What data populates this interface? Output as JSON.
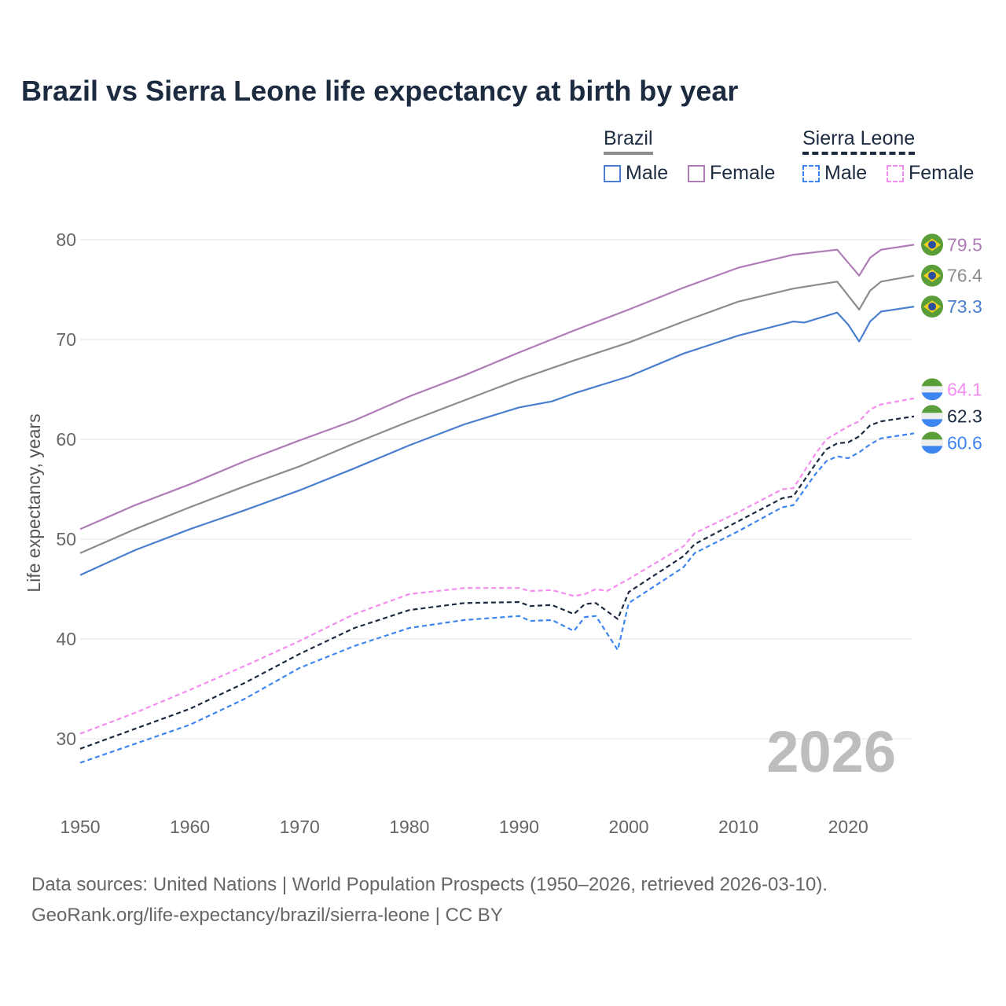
{
  "chart_data": {
    "type": "line",
    "title": "Brazil vs Sierra Leone life expectancy at birth by year",
    "xlabel": "",
    "ylabel": "Life expectancy, years",
    "xlim": [
      1950,
      2026
    ],
    "ylim": [
      25,
      83
    ],
    "xticks": [
      1950,
      1960,
      1970,
      1980,
      1990,
      2000,
      2010,
      2020
    ],
    "yticks": [
      30,
      40,
      50,
      60,
      70,
      80
    ],
    "grid": true,
    "watermark_year": "2026",
    "legend": {
      "placement": "top-right",
      "groups": [
        {
          "country": "Brazil",
          "style": "solid",
          "items": [
            "Male",
            "Female"
          ]
        },
        {
          "country": "Sierra Leone",
          "style": "dashed",
          "items": [
            "Male",
            "Female"
          ]
        }
      ]
    },
    "series": [
      {
        "name": "Brazil Female",
        "country": "Brazil",
        "color": "#b07cb8",
        "dashed": false,
        "end_label": "79.5",
        "points": [
          [
            1950,
            51.0
          ],
          [
            1955,
            53.4
          ],
          [
            1960,
            55.5
          ],
          [
            1965,
            57.8
          ],
          [
            1970,
            59.9
          ],
          [
            1975,
            61.9
          ],
          [
            1980,
            64.3
          ],
          [
            1985,
            66.4
          ],
          [
            1990,
            68.7
          ],
          [
            1995,
            70.9
          ],
          [
            2000,
            73.0
          ],
          [
            2005,
            75.2
          ],
          [
            2010,
            77.2
          ],
          [
            2015,
            78.5
          ],
          [
            2019,
            79.0
          ],
          [
            2021,
            76.4
          ],
          [
            2022,
            78.2
          ],
          [
            2023,
            79.0
          ],
          [
            2026,
            79.5
          ]
        ]
      },
      {
        "name": "Brazil Total",
        "country": "Brazil",
        "color": "#8c8c8c",
        "dashed": false,
        "end_label": "76.4",
        "points": [
          [
            1950,
            48.6
          ],
          [
            1955,
            51.0
          ],
          [
            1960,
            53.2
          ],
          [
            1965,
            55.3
          ],
          [
            1970,
            57.3
          ],
          [
            1975,
            59.6
          ],
          [
            1980,
            61.8
          ],
          [
            1985,
            63.9
          ],
          [
            1990,
            66.0
          ],
          [
            1995,
            67.9
          ],
          [
            2000,
            69.7
          ],
          [
            2005,
            71.8
          ],
          [
            2010,
            73.8
          ],
          [
            2015,
            75.1
          ],
          [
            2019,
            75.8
          ],
          [
            2021,
            73.0
          ],
          [
            2022,
            74.9
          ],
          [
            2023,
            75.8
          ],
          [
            2026,
            76.4
          ]
        ]
      },
      {
        "name": "Brazil Male",
        "country": "Brazil",
        "color": "#4a7ecf",
        "dashed": false,
        "end_label": "73.3",
        "points": [
          [
            1950,
            46.4
          ],
          [
            1955,
            48.9
          ],
          [
            1960,
            51.0
          ],
          [
            1965,
            52.9
          ],
          [
            1970,
            54.9
          ],
          [
            1975,
            57.1
          ],
          [
            1980,
            59.4
          ],
          [
            1985,
            61.5
          ],
          [
            1990,
            63.2
          ],
          [
            1993,
            63.8
          ],
          [
            1995,
            64.6
          ],
          [
            2000,
            66.3
          ],
          [
            2005,
            68.6
          ],
          [
            2010,
            70.4
          ],
          [
            2015,
            71.8
          ],
          [
            2016,
            71.7
          ],
          [
            2019,
            72.7
          ],
          [
            2020,
            71.5
          ],
          [
            2021,
            69.8
          ],
          [
            2022,
            71.8
          ],
          [
            2023,
            72.8
          ],
          [
            2026,
            73.3
          ]
        ]
      },
      {
        "name": "Sierra Leone Female",
        "country": "Sierra Leone",
        "color": "#f58cf0",
        "dashed": true,
        "end_label": "64.1",
        "points": [
          [
            1950,
            30.5
          ],
          [
            1955,
            32.6
          ],
          [
            1960,
            34.9
          ],
          [
            1965,
            37.3
          ],
          [
            1970,
            39.8
          ],
          [
            1975,
            42.5
          ],
          [
            1980,
            44.5
          ],
          [
            1985,
            45.1
          ],
          [
            1990,
            45.1
          ],
          [
            1991,
            44.8
          ],
          [
            1993,
            44.9
          ],
          [
            1995,
            44.3
          ],
          [
            1996,
            44.5
          ],
          [
            1997,
            45.0
          ],
          [
            1998,
            44.8
          ],
          [
            1999,
            45.4
          ],
          [
            2000,
            46.0
          ],
          [
            2005,
            49.3
          ],
          [
            2006,
            50.6
          ],
          [
            2010,
            52.7
          ],
          [
            2014,
            55.0
          ],
          [
            2015,
            55.1
          ],
          [
            2017,
            58.5
          ],
          [
            2018,
            60.0
          ],
          [
            2020,
            61.3
          ],
          [
            2021,
            61.8
          ],
          [
            2022,
            63.0
          ],
          [
            2023,
            63.5
          ],
          [
            2026,
            64.1
          ]
        ]
      },
      {
        "name": "Sierra Leone Total",
        "country": "Sierra Leone",
        "color": "#1c2b40",
        "dashed": true,
        "end_label": "62.3",
        "points": [
          [
            1950,
            29.0
          ],
          [
            1955,
            31.0
          ],
          [
            1960,
            33.0
          ],
          [
            1965,
            35.6
          ],
          [
            1970,
            38.5
          ],
          [
            1975,
            41.1
          ],
          [
            1980,
            42.9
          ],
          [
            1985,
            43.6
          ],
          [
            1990,
            43.7
          ],
          [
            1991,
            43.3
          ],
          [
            1993,
            43.4
          ],
          [
            1995,
            42.5
          ],
          [
            1996,
            43.5
          ],
          [
            1997,
            43.6
          ],
          [
            1999,
            42.0
          ],
          [
            2000,
            44.7
          ],
          [
            2005,
            48.3
          ],
          [
            2006,
            49.5
          ],
          [
            2010,
            51.8
          ],
          [
            2014,
            54.1
          ],
          [
            2015,
            54.3
          ],
          [
            2017,
            57.5
          ],
          [
            2018,
            59.0
          ],
          [
            2019,
            59.6
          ],
          [
            2020,
            59.7
          ],
          [
            2021,
            60.3
          ],
          [
            2022,
            61.4
          ],
          [
            2023,
            61.8
          ],
          [
            2026,
            62.3
          ]
        ]
      },
      {
        "name": "Sierra Leone Male",
        "country": "Sierra Leone",
        "color": "#3d85f0",
        "dashed": true,
        "end_label": "60.6",
        "points": [
          [
            1950,
            27.6
          ],
          [
            1955,
            29.5
          ],
          [
            1960,
            31.4
          ],
          [
            1965,
            34.0
          ],
          [
            1970,
            37.1
          ],
          [
            1975,
            39.3
          ],
          [
            1980,
            41.1
          ],
          [
            1985,
            41.9
          ],
          [
            1990,
            42.3
          ],
          [
            1991,
            41.8
          ],
          [
            1993,
            41.9
          ],
          [
            1995,
            40.8
          ],
          [
            1996,
            42.2
          ],
          [
            1997,
            42.3
          ],
          [
            1999,
            38.9
          ],
          [
            2000,
            43.6
          ],
          [
            2005,
            47.2
          ],
          [
            2006,
            48.6
          ],
          [
            2010,
            50.8
          ],
          [
            2014,
            53.2
          ],
          [
            2015,
            53.4
          ],
          [
            2017,
            56.5
          ],
          [
            2018,
            57.8
          ],
          [
            2019,
            58.3
          ],
          [
            2020,
            58.1
          ],
          [
            2021,
            58.7
          ],
          [
            2022,
            59.5
          ],
          [
            2023,
            60.1
          ],
          [
            2026,
            60.6
          ]
        ]
      }
    ]
  },
  "legend_labels": {
    "brazil": "Brazil",
    "sierra_leone": "Sierra Leone",
    "male": "Male",
    "female": "Female"
  },
  "source": {
    "line1": "Data sources: United Nations | World Population Prospects (1950–2026, retrieved 2026-03-10).",
    "line2": "GeoRank.org/life-expectancy/brazil/sierra-leone | CC BY"
  }
}
